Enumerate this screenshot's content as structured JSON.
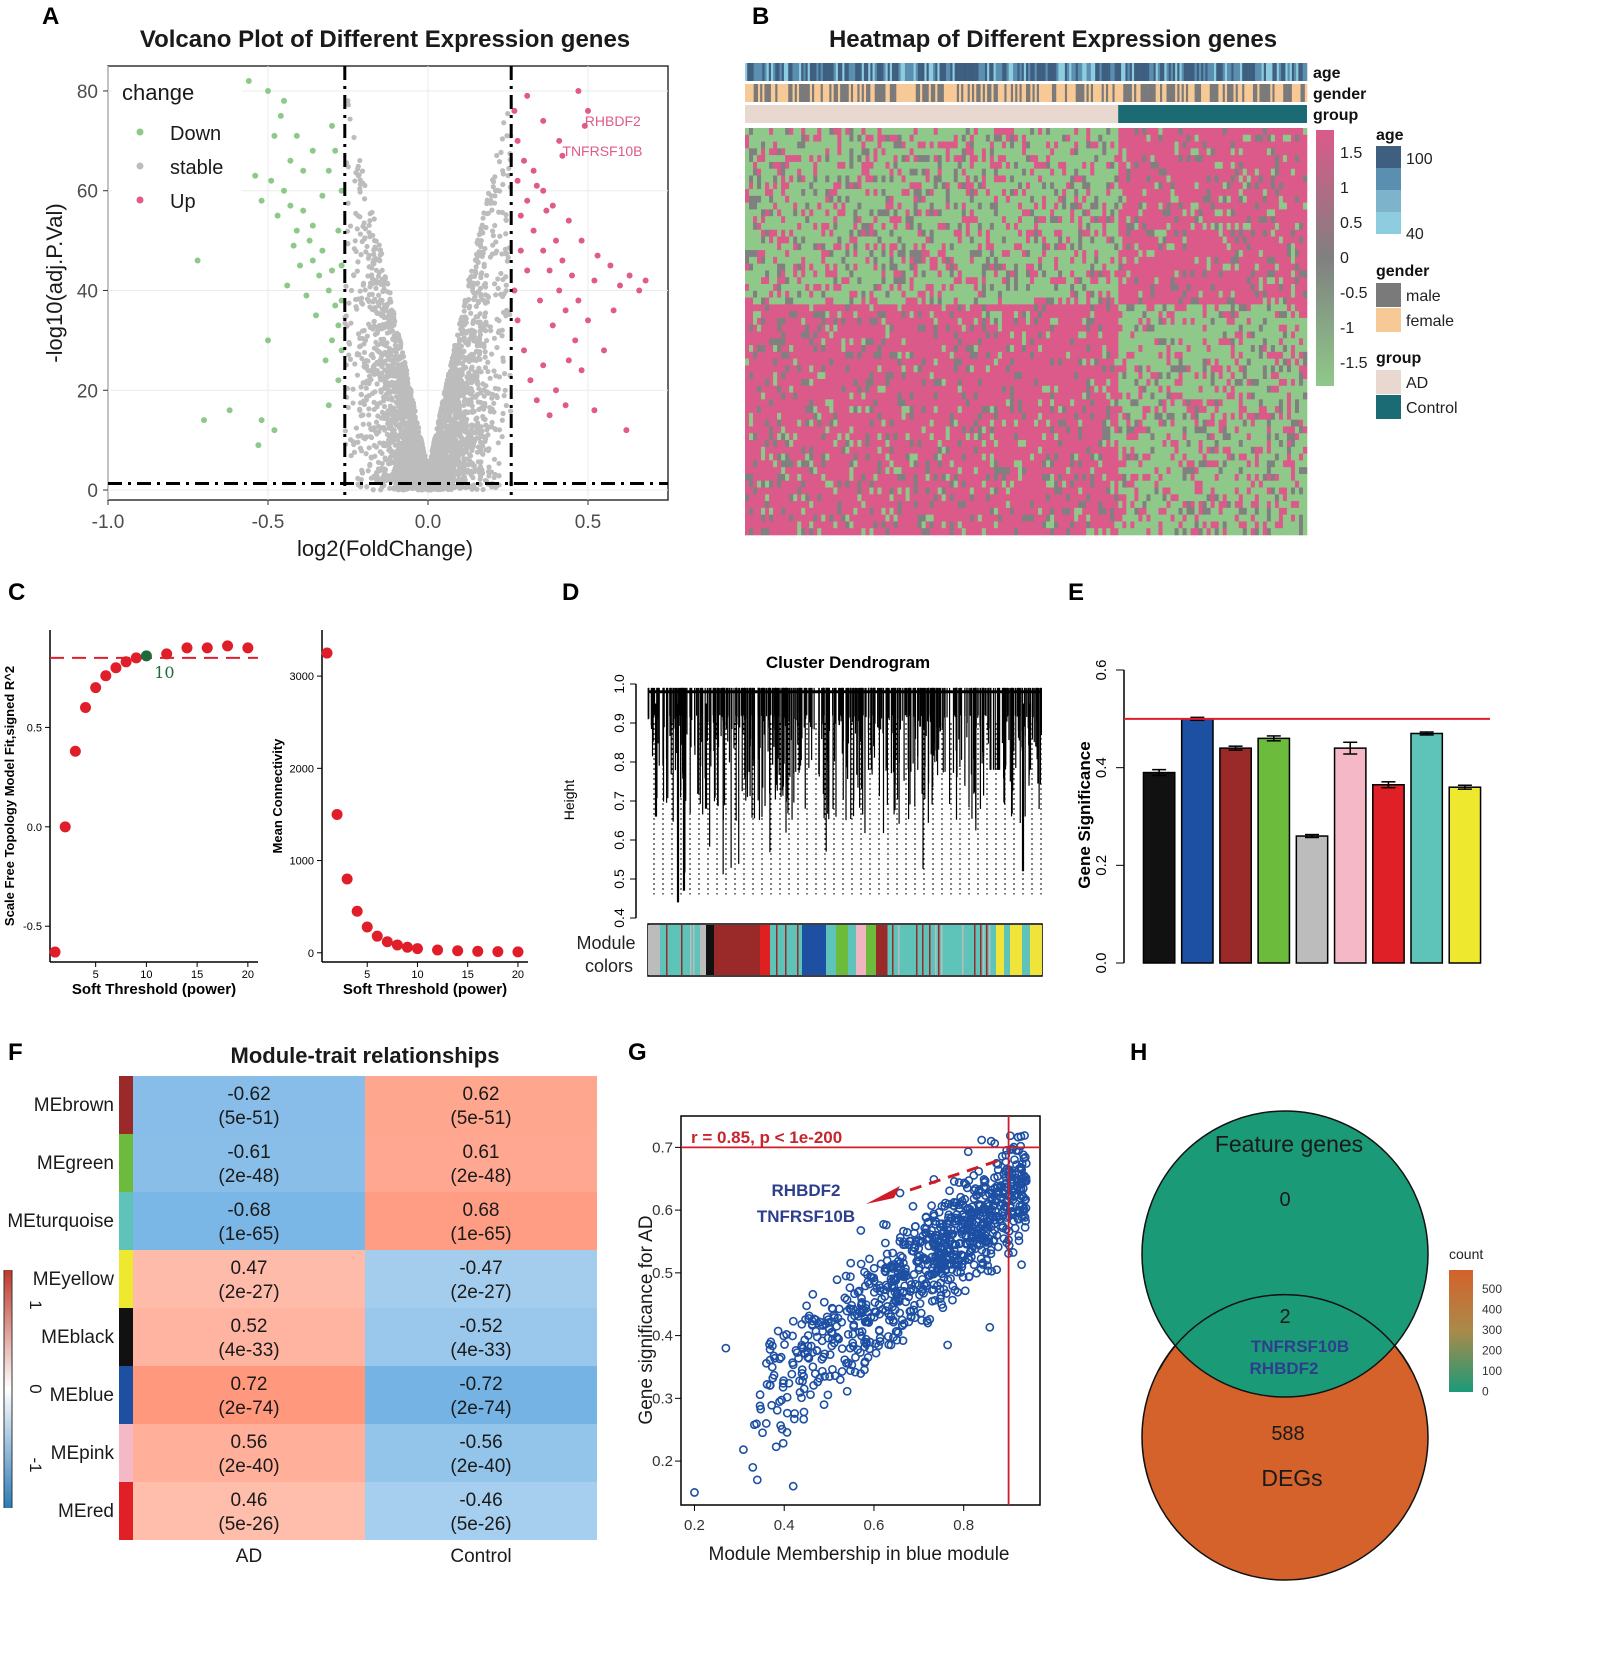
{
  "panels": {
    "A": {
      "letter": "A",
      "chart_data": {
        "type": "scatter",
        "title": "Volcano Plot of  Different Expression genes",
        "xlabel": "log2(FoldChange)",
        "ylabel": "-log10(adj.P.Val)",
        "xlim": [
          -1.0,
          0.75
        ],
        "ylim": [
          -2,
          85
        ],
        "xticks": [
          -1.0,
          -0.5,
          0.0,
          0.5
        ],
        "xtick_labels": [
          "-1.0",
          "-0.5",
          "0.0",
          "0.5"
        ],
        "yticks": [
          0,
          20,
          40,
          60,
          80
        ],
        "ytick_labels": [
          "0",
          "20",
          "40",
          "60",
          "80"
        ],
        "thresholds": {
          "fc": [
            -0.26,
            0.26
          ],
          "p": 1.3
        },
        "legend": {
          "title": "change",
          "items": [
            {
              "label": "Down",
              "color": "#8fc98a"
            },
            {
              "label": "stable",
              "color": "#bcbcbc"
            },
            {
              "label": "Up",
              "color": "#e05a8a"
            }
          ]
        },
        "labels": [
          {
            "text": "RHBDF2",
            "x": 0.49,
            "y": 73
          },
          {
            "text": "TNFRSF10B",
            "x": 0.42,
            "y": 67
          }
        ],
        "points": [
          [
            -0.72,
            46
          ],
          [
            -0.7,
            14
          ],
          [
            -0.62,
            16
          ],
          [
            -0.52,
            14
          ],
          [
            -0.53,
            9
          ],
          [
            -0.5,
            30
          ],
          [
            -0.48,
            12
          ],
          [
            -0.44,
            41
          ],
          [
            -0.56,
            82
          ],
          [
            -0.5,
            80
          ],
          [
            -0.45,
            78
          ],
          [
            -0.46,
            75
          ],
          [
            -0.48,
            71
          ],
          [
            -0.54,
            63
          ],
          [
            -0.52,
            58
          ],
          [
            -0.49,
            62
          ],
          [
            -0.47,
            55
          ],
          [
            -0.45,
            60
          ],
          [
            -0.43,
            57
          ],
          [
            -0.41,
            52
          ],
          [
            -0.39,
            56
          ],
          [
            -0.37,
            50
          ],
          [
            -0.36,
            46
          ],
          [
            -0.34,
            43
          ],
          [
            -0.33,
            48
          ],
          [
            -0.31,
            40
          ],
          [
            -0.3,
            44
          ],
          [
            -0.29,
            37
          ],
          [
            -0.28,
            33
          ],
          [
            -0.3,
            30
          ],
          [
            -0.32,
            26
          ],
          [
            -0.35,
            35
          ],
          [
            -0.38,
            39
          ],
          [
            -0.4,
            45
          ],
          [
            -0.42,
            49
          ],
          [
            -0.36,
            53
          ],
          [
            -0.33,
            59
          ],
          [
            -0.31,
            64
          ],
          [
            -0.29,
            68
          ],
          [
            -0.27,
            60
          ],
          [
            -0.28,
            52
          ],
          [
            -0.27,
            45
          ],
          [
            -0.28,
            22
          ],
          [
            -0.31,
            17
          ],
          [
            -0.27,
            28
          ],
          [
            -0.27,
            38
          ],
          [
            -0.3,
            73
          ],
          [
            -0.36,
            68
          ],
          [
            -0.39,
            64
          ],
          [
            -0.43,
            66
          ],
          [
            -0.41,
            71
          ],
          [
            0.27,
            76
          ],
          [
            0.31,
            79
          ],
          [
            0.36,
            74
          ],
          [
            0.41,
            70
          ],
          [
            0.49,
            73
          ],
          [
            0.42,
            67
          ],
          [
            0.47,
            80
          ],
          [
            0.5,
            76
          ],
          [
            0.28,
            62
          ],
          [
            0.29,
            55
          ],
          [
            0.31,
            58
          ],
          [
            0.33,
            52
          ],
          [
            0.34,
            61
          ],
          [
            0.36,
            48
          ],
          [
            0.37,
            56
          ],
          [
            0.38,
            44
          ],
          [
            0.4,
            50
          ],
          [
            0.41,
            40
          ],
          [
            0.42,
            46
          ],
          [
            0.43,
            36
          ],
          [
            0.45,
            43
          ],
          [
            0.46,
            30
          ],
          [
            0.47,
            38
          ],
          [
            0.5,
            34
          ],
          [
            0.52,
            42
          ],
          [
            0.55,
            28
          ],
          [
            0.58,
            36
          ],
          [
            0.6,
            41
          ],
          [
            0.63,
            43
          ],
          [
            0.66,
            40
          ],
          [
            0.68,
            42
          ],
          [
            0.27,
            40
          ],
          [
            0.28,
            34
          ],
          [
            0.3,
            28
          ],
          [
            0.32,
            22
          ],
          [
            0.34,
            18
          ],
          [
            0.36,
            25
          ],
          [
            0.38,
            15
          ],
          [
            0.4,
            20
          ],
          [
            0.43,
            17
          ],
          [
            0.48,
            24
          ],
          [
            0.52,
            16
          ],
          [
            0.62,
            12
          ],
          [
            0.29,
            48
          ],
          [
            0.31,
            44
          ],
          [
            0.35,
            38
          ],
          [
            0.39,
            33
          ],
          [
            0.44,
            26
          ],
          [
            0.28,
            70
          ],
          [
            0.3,
            66
          ],
          [
            0.33,
            64
          ],
          [
            0.36,
            60
          ],
          [
            0.39,
            57
          ],
          [
            0.44,
            54
          ],
          [
            0.48,
            50
          ],
          [
            0.53,
            47
          ],
          [
            0.57,
            45
          ]
        ]
      }
    },
    "B": {
      "letter": "B",
      "chart_data": {
        "type": "heatmap",
        "title": "Heatmap of  Different Expression genes",
        "annotation_rows": [
          "age",
          "gender",
          "group"
        ],
        "colorbar_ticks": [
          "1.5",
          "1",
          "0.5",
          "0",
          "-0.5",
          "-1",
          "-1.5"
        ],
        "legends": {
          "age": {
            "title": "age",
            "items": [
              "100",
              "40"
            ]
          },
          "gender": {
            "title": "gender",
            "items": [
              "male",
              "female"
            ]
          },
          "group": {
            "title": "group",
            "items": [
              "AD",
              "Control"
            ]
          }
        },
        "group_split_fraction": 0.664,
        "row_split_fraction": 0.433,
        "colors": {
          "high": "#db5a8a",
          "mid": "#808080",
          "low": "#8fc98a",
          "AD": "#e8d8d0",
          "Control": "#1a6b73",
          "male": "#7a7a7a",
          "female": "#f7c996",
          "age_high": "#3e5f80",
          "age_low": "#8ecde0"
        }
      }
    },
    "C": {
      "letter": "C",
      "chart_data": [
        {
          "type": "scatter",
          "xlabel": "Soft Threshold (power)",
          "ylabel": "Scale Free Topology Model Fit,signed R^2",
          "xlim": [
            0.5,
            21
          ],
          "ylim": [
            -0.68,
            0.99
          ],
          "xticks": [
            5,
            10,
            15,
            20
          ],
          "yticks": [
            -0.5,
            0.0,
            0.5
          ],
          "ytick_labels": [
            "-0.5",
            "0.0",
            "0.5"
          ],
          "cutoff": 0.85,
          "selected_power": 10,
          "selected_label": "10",
          "x": [
            1,
            2,
            3,
            4,
            5,
            6,
            7,
            8,
            9,
            10,
            12,
            14,
            16,
            18,
            20
          ],
          "y": [
            -0.63,
            0.0,
            0.38,
            0.6,
            0.7,
            0.76,
            0.8,
            0.83,
            0.85,
            0.86,
            0.87,
            0.9,
            0.9,
            0.91,
            0.9
          ]
        },
        {
          "type": "scatter",
          "xlabel": "Soft Threshold (power)",
          "ylabel": "Mean Connectivity",
          "xlim": [
            0.5,
            21
          ],
          "ylim": [
            -100,
            3500
          ],
          "xticks": [
            5,
            10,
            15,
            20
          ],
          "yticks": [
            0,
            1000,
            2000,
            3000
          ],
          "ytick_labels": [
            "0",
            "1000",
            "2000",
            "3000"
          ],
          "x": [
            1,
            2,
            3,
            4,
            5,
            6,
            7,
            8,
            9,
            10,
            12,
            14,
            16,
            18,
            20
          ],
          "y": [
            3250,
            1500,
            800,
            450,
            280,
            180,
            120,
            85,
            60,
            45,
            30,
            22,
            16,
            12,
            10
          ]
        }
      ]
    },
    "D": {
      "letter": "D",
      "title": "Cluster Dendrogram",
      "ylabel": "Height",
      "module_label_1": "Module",
      "module_label_2": "colors",
      "yticks": [
        "1.0",
        "0.9",
        "0.8",
        "0.7",
        "0.6",
        "0.5",
        "0.4"
      ],
      "module_colors": [
        "#bcbcbc",
        "#5ec3b8",
        "#111111",
        "#9a2a2a",
        "#e02020",
        "#1d4fa3",
        "#6cbb3c",
        "#f0b5c1",
        "#f0e33a"
      ]
    },
    "E": {
      "letter": "E",
      "chart_data": {
        "type": "bar",
        "ylabel": "Gene Significance",
        "ylim": [
          0.0,
          0.6
        ],
        "yticks": [
          0.0,
          0.2,
          0.4,
          0.6
        ],
        "ytick_labels": [
          "0.0",
          "0.2",
          "0.4",
          "0.6"
        ],
        "reference_line": 0.5,
        "categories": [
          "black",
          "blue",
          "brown",
          "green",
          "grey",
          "pink",
          "red",
          "turquoise",
          "yellow"
        ],
        "colors": [
          "#111111",
          "#1d4fa3",
          "#9a2a2a",
          "#6cbb3c",
          "#bcbcbc",
          "#f4b8c6",
          "#e02027",
          "#5ec3b8",
          "#eee92f"
        ],
        "values": [
          0.39,
          0.5,
          0.44,
          0.46,
          0.26,
          0.44,
          0.365,
          0.47,
          0.36
        ],
        "errors": [
          0.006,
          0.003,
          0.004,
          0.005,
          0.003,
          0.012,
          0.006,
          0.003,
          0.004
        ]
      }
    },
    "F": {
      "letter": "F",
      "chart_data": {
        "type": "heatmap",
        "title": "Module-trait relationships",
        "columns": [
          "AD",
          "Control"
        ],
        "rows": [
          {
            "name": "MEbrown",
            "color": "#9a2a2a",
            "values": [
              -0.62,
              0.62
            ],
            "labels": [
              "-0.62",
              "0.62"
            ],
            "pvalues": [
              "(5e-51)",
              "(5e-51)"
            ]
          },
          {
            "name": "MEgreen",
            "color": "#6cbb3c",
            "values": [
              -0.61,
              0.61
            ],
            "labels": [
              "-0.61",
              "0.61"
            ],
            "pvalues": [
              "(2e-48)",
              "(2e-48)"
            ]
          },
          {
            "name": "MEturquoise",
            "color": "#5ec3b8",
            "values": [
              -0.68,
              0.68
            ],
            "labels": [
              "-0.68",
              "0.68"
            ],
            "pvalues": [
              "(1e-65)",
              "(1e-65)"
            ]
          },
          {
            "name": "MEyellow",
            "color": "#eee92f",
            "values": [
              0.47,
              -0.47
            ],
            "labels": [
              "0.47",
              "-0.47"
            ],
            "pvalues": [
              "(2e-27)",
              "(2e-27)"
            ]
          },
          {
            "name": "MEblack",
            "color": "#111111",
            "values": [
              0.52,
              -0.52
            ],
            "labels": [
              "0.52",
              "-0.52"
            ],
            "pvalues": [
              "(4e-33)",
              "(4e-33)"
            ]
          },
          {
            "name": "MEblue",
            "color": "#1d4fa3",
            "values": [
              0.72,
              -0.72
            ],
            "labels": [
              "0.72",
              "-0.72"
            ],
            "pvalues": [
              "(2e-74)",
              "(2e-74)"
            ]
          },
          {
            "name": "MEpink",
            "color": "#f4b8c6",
            "values": [
              0.56,
              -0.56
            ],
            "labels": [
              "0.56",
              "-0.56"
            ],
            "pvalues": [
              "(2e-40)",
              "(2e-40)"
            ]
          },
          {
            "name": "MEred",
            "color": "#e02027",
            "values": [
              0.46,
              -0.46
            ],
            "labels": [
              "0.46",
              "-0.46"
            ],
            "pvalues": [
              "(5e-26)",
              "(5e-26)"
            ]
          }
        ],
        "colorbar_ticks": [
          "1",
          "0",
          "-1"
        ]
      }
    },
    "G": {
      "letter": "G",
      "chart_data": {
        "type": "scatter",
        "xlabel": "Module Membership in blue module",
        "ylabel": "Gene significance for AD",
        "annotation": "r = 0.85, p < 1e-200",
        "xlim": [
          0.17,
          0.97
        ],
        "ylim": [
          0.13,
          0.75
        ],
        "xticks": [
          0.2,
          0.4,
          0.6,
          0.8
        ],
        "xtick_labels": [
          "0.2",
          "0.4",
          "0.6",
          "0.8"
        ],
        "yticks": [
          0.2,
          0.3,
          0.4,
          0.5,
          0.6,
          0.7
        ],
        "ytick_labels": [
          "0.2",
          "0.3",
          "0.4",
          "0.5",
          "0.6",
          "0.7"
        ],
        "cutoff_x": 0.9,
        "cutoff_y": 0.7,
        "highlight_genes": [
          "RHBDF2",
          "TNFRSF10B"
        ],
        "r": 0.85,
        "n_points": 900
      }
    },
    "H": {
      "letter": "H",
      "chart_data": {
        "type": "venn",
        "sets": [
          {
            "name": "Feature genes",
            "only": "0",
            "color": "#1b9a78"
          },
          {
            "name": "DEGs",
            "only": "588",
            "color": "#d4622a"
          }
        ],
        "intersection": "2",
        "intersection_genes": [
          "TNFRSF10B",
          "RHBDF2"
        ],
        "legend_title": "count",
        "legend_ticks": [
          "500",
          "400",
          "300",
          "200",
          "100",
          "0"
        ]
      }
    }
  }
}
